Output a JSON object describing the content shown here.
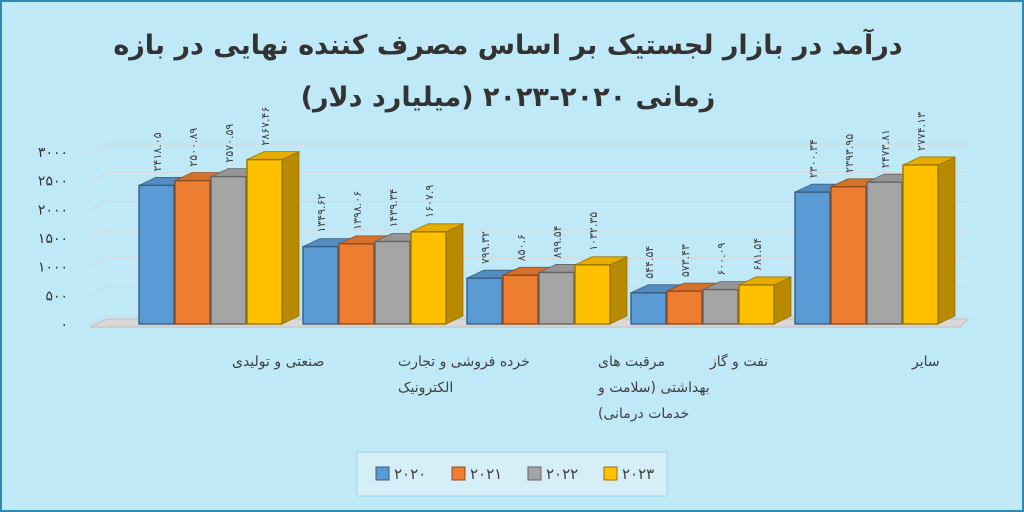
{
  "chart_data": {
    "type": "bar",
    "title_lines": [
      "درآمد در بازار لجستیک بر اساس مصرف کننده نهایی در بازه",
      "زمانی ۲۰۲۰-۲۰۲۳  (میلیارد دلار)"
    ],
    "xlabel": "",
    "ylabel": "",
    "ylim": [
      0,
      3000
    ],
    "yticks": [
      0,
      500,
      1000,
      1500,
      2000,
      2500,
      3000
    ],
    "ytick_labels": [
      "۰",
      "۵۰۰",
      "۱۰۰۰",
      "۱۵۰۰",
      "۲۰۰۰",
      "۲۵۰۰",
      "۳۰۰۰"
    ],
    "grid": true,
    "legend_position": "bottom",
    "categories": [
      [
        "صنعتی و تولیدی"
      ],
      [
        "خرده فروشی و تجارت",
        "الکترونیک"
      ],
      [
        "مرقبت های",
        "بهداشتی (سلامت و",
        "خدمات درمانی)"
      ],
      [
        "نفت و گاز"
      ],
      [
        "سایر"
      ]
    ],
    "series": [
      {
        "name": "۲۰۲۰",
        "color": "#5b9bd5",
        "values": [
          2418.05,
          1349.62,
          799.32,
          544.54,
          2300.34
        ],
        "labels": [
          "۲۴۱۸.۰۵",
          "۱۳۴۹.۶۲",
          "۷۹۹.۳۲",
          "۵۴۴.۵۴",
          "۲۳۰۰.۳۴"
        ]
      },
      {
        "name": "۲۰۲۱",
        "color": "#ed7d31",
        "values": [
          2500.89,
          1398.06,
          850.6,
          573.43,
          2393.95
        ],
        "labels": [
          "۲۵۰۰.۸۹",
          "۱۳۹۸.۰۶",
          "۸۵۰.۶",
          "۵۷۳.۴۳",
          "۲۳۹۳.۹۵"
        ]
      },
      {
        "name": "۲۰۲۲",
        "color": "#a5a5a5",
        "values": [
          2570.59,
          1439.34,
          899.54,
          600.09,
          2473.81
        ],
        "labels": [
          "۲۵۷۰.۵۹",
          "۱۴۳۹.۳۴",
          "۸۹۹.۵۴",
          "۶۰۰.۰۹",
          "۲۴۷۳.۸۱"
        ]
      },
      {
        "name": "۲۰۲۳",
        "color": "#ffc000",
        "values": [
          2867.46,
          1607.9,
          1032.35,
          681.54,
          2774.13
        ],
        "labels": [
          "۲۸۶۷.۴۶",
          "۱۶۰۷.۹",
          "۱۰۳۲.۳۵",
          "۶۸۱.۵۴",
          "۲۷۷۴.۱۳"
        ]
      }
    ]
  }
}
